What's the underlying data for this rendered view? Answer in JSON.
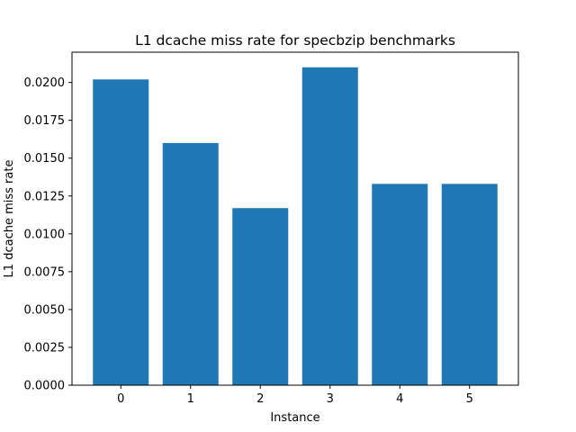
{
  "chart_data": {
    "type": "bar",
    "title": "L1 dcache miss rate for specbzip benchmarks",
    "xlabel": "Instance",
    "ylabel": "L1 dcache miss rate",
    "categories": [
      "0",
      "1",
      "2",
      "3",
      "4",
      "5"
    ],
    "values": [
      0.0202,
      0.016,
      0.0117,
      0.021,
      0.0133,
      0.0133
    ],
    "ylim": [
      0,
      0.022
    ],
    "yticks": [
      "0.0000",
      "0.0025",
      "0.0050",
      "0.0075",
      "0.0100",
      "0.0125",
      "0.0150",
      "0.0175",
      "0.0200"
    ],
    "bar_color": "#1f77b4",
    "grid": false,
    "legend": "none"
  }
}
